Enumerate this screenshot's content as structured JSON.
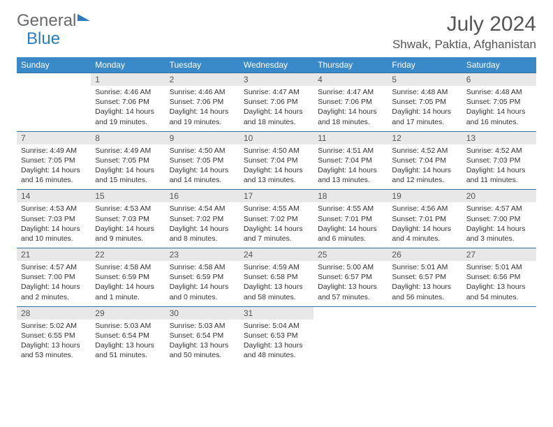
{
  "logo": {
    "word1": "General",
    "word2": "Blue"
  },
  "title": "July 2024",
  "location": "Shwak, Paktia, Afghanistan",
  "colors": {
    "header_bg": "#3a89c9",
    "header_text": "#ffffff",
    "week_divider": "#2f6fa3",
    "daynum_bg": "#e8e8e8",
    "text": "#333333",
    "logo_gray": "#6a6a6a",
    "logo_blue": "#2d7bc0"
  },
  "weekdays": [
    "Sunday",
    "Monday",
    "Tuesday",
    "Wednesday",
    "Thursday",
    "Friday",
    "Saturday"
  ],
  "weeks": [
    [
      {
        "n": "",
        "sr": "",
        "ss": "",
        "dl": ""
      },
      {
        "n": "1",
        "sr": "Sunrise: 4:46 AM",
        "ss": "Sunset: 7:06 PM",
        "dl": "Daylight: 14 hours and 19 minutes."
      },
      {
        "n": "2",
        "sr": "Sunrise: 4:46 AM",
        "ss": "Sunset: 7:06 PM",
        "dl": "Daylight: 14 hours and 19 minutes."
      },
      {
        "n": "3",
        "sr": "Sunrise: 4:47 AM",
        "ss": "Sunset: 7:06 PM",
        "dl": "Daylight: 14 hours and 18 minutes."
      },
      {
        "n": "4",
        "sr": "Sunrise: 4:47 AM",
        "ss": "Sunset: 7:06 PM",
        "dl": "Daylight: 14 hours and 18 minutes."
      },
      {
        "n": "5",
        "sr": "Sunrise: 4:48 AM",
        "ss": "Sunset: 7:05 PM",
        "dl": "Daylight: 14 hours and 17 minutes."
      },
      {
        "n": "6",
        "sr": "Sunrise: 4:48 AM",
        "ss": "Sunset: 7:05 PM",
        "dl": "Daylight: 14 hours and 16 minutes."
      }
    ],
    [
      {
        "n": "7",
        "sr": "Sunrise: 4:49 AM",
        "ss": "Sunset: 7:05 PM",
        "dl": "Daylight: 14 hours and 16 minutes."
      },
      {
        "n": "8",
        "sr": "Sunrise: 4:49 AM",
        "ss": "Sunset: 7:05 PM",
        "dl": "Daylight: 14 hours and 15 minutes."
      },
      {
        "n": "9",
        "sr": "Sunrise: 4:50 AM",
        "ss": "Sunset: 7:05 PM",
        "dl": "Daylight: 14 hours and 14 minutes."
      },
      {
        "n": "10",
        "sr": "Sunrise: 4:50 AM",
        "ss": "Sunset: 7:04 PM",
        "dl": "Daylight: 14 hours and 13 minutes."
      },
      {
        "n": "11",
        "sr": "Sunrise: 4:51 AM",
        "ss": "Sunset: 7:04 PM",
        "dl": "Daylight: 14 hours and 13 minutes."
      },
      {
        "n": "12",
        "sr": "Sunrise: 4:52 AM",
        "ss": "Sunset: 7:04 PM",
        "dl": "Daylight: 14 hours and 12 minutes."
      },
      {
        "n": "13",
        "sr": "Sunrise: 4:52 AM",
        "ss": "Sunset: 7:03 PM",
        "dl": "Daylight: 14 hours and 11 minutes."
      }
    ],
    [
      {
        "n": "14",
        "sr": "Sunrise: 4:53 AM",
        "ss": "Sunset: 7:03 PM",
        "dl": "Daylight: 14 hours and 10 minutes."
      },
      {
        "n": "15",
        "sr": "Sunrise: 4:53 AM",
        "ss": "Sunset: 7:03 PM",
        "dl": "Daylight: 14 hours and 9 minutes."
      },
      {
        "n": "16",
        "sr": "Sunrise: 4:54 AM",
        "ss": "Sunset: 7:02 PM",
        "dl": "Daylight: 14 hours and 8 minutes."
      },
      {
        "n": "17",
        "sr": "Sunrise: 4:55 AM",
        "ss": "Sunset: 7:02 PM",
        "dl": "Daylight: 14 hours and 7 minutes."
      },
      {
        "n": "18",
        "sr": "Sunrise: 4:55 AM",
        "ss": "Sunset: 7:01 PM",
        "dl": "Daylight: 14 hours and 6 minutes."
      },
      {
        "n": "19",
        "sr": "Sunrise: 4:56 AM",
        "ss": "Sunset: 7:01 PM",
        "dl": "Daylight: 14 hours and 4 minutes."
      },
      {
        "n": "20",
        "sr": "Sunrise: 4:57 AM",
        "ss": "Sunset: 7:00 PM",
        "dl": "Daylight: 14 hours and 3 minutes."
      }
    ],
    [
      {
        "n": "21",
        "sr": "Sunrise: 4:57 AM",
        "ss": "Sunset: 7:00 PM",
        "dl": "Daylight: 14 hours and 2 minutes."
      },
      {
        "n": "22",
        "sr": "Sunrise: 4:58 AM",
        "ss": "Sunset: 6:59 PM",
        "dl": "Daylight: 14 hours and 1 minute."
      },
      {
        "n": "23",
        "sr": "Sunrise: 4:58 AM",
        "ss": "Sunset: 6:59 PM",
        "dl": "Daylight: 14 hours and 0 minutes."
      },
      {
        "n": "24",
        "sr": "Sunrise: 4:59 AM",
        "ss": "Sunset: 6:58 PM",
        "dl": "Daylight: 13 hours and 58 minutes."
      },
      {
        "n": "25",
        "sr": "Sunrise: 5:00 AM",
        "ss": "Sunset: 6:57 PM",
        "dl": "Daylight: 13 hours and 57 minutes."
      },
      {
        "n": "26",
        "sr": "Sunrise: 5:01 AM",
        "ss": "Sunset: 6:57 PM",
        "dl": "Daylight: 13 hours and 56 minutes."
      },
      {
        "n": "27",
        "sr": "Sunrise: 5:01 AM",
        "ss": "Sunset: 6:56 PM",
        "dl": "Daylight: 13 hours and 54 minutes."
      }
    ],
    [
      {
        "n": "28",
        "sr": "Sunrise: 5:02 AM",
        "ss": "Sunset: 6:55 PM",
        "dl": "Daylight: 13 hours and 53 minutes."
      },
      {
        "n": "29",
        "sr": "Sunrise: 5:03 AM",
        "ss": "Sunset: 6:54 PM",
        "dl": "Daylight: 13 hours and 51 minutes."
      },
      {
        "n": "30",
        "sr": "Sunrise: 5:03 AM",
        "ss": "Sunset: 6:54 PM",
        "dl": "Daylight: 13 hours and 50 minutes."
      },
      {
        "n": "31",
        "sr": "Sunrise: 5:04 AM",
        "ss": "Sunset: 6:53 PM",
        "dl": "Daylight: 13 hours and 48 minutes."
      },
      {
        "n": "",
        "sr": "",
        "ss": "",
        "dl": ""
      },
      {
        "n": "",
        "sr": "",
        "ss": "",
        "dl": ""
      },
      {
        "n": "",
        "sr": "",
        "ss": "",
        "dl": ""
      }
    ]
  ]
}
